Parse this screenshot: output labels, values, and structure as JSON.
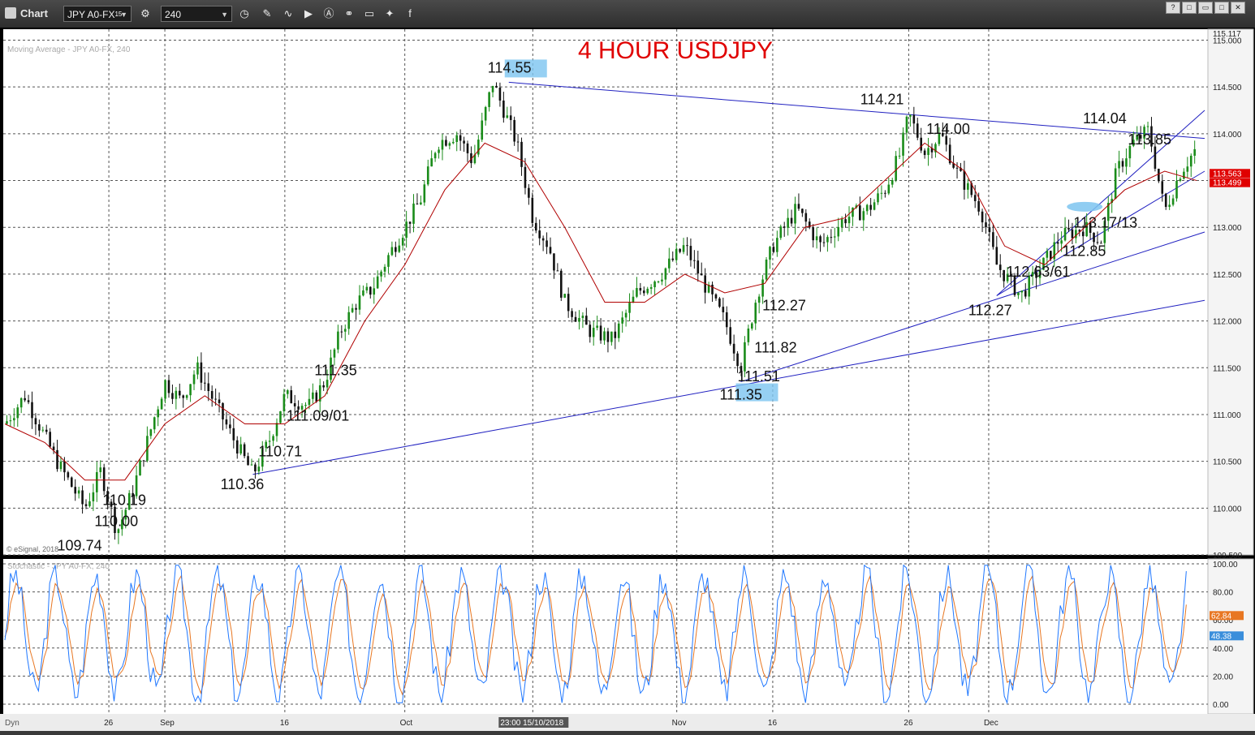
{
  "toolbar": {
    "title": "Chart",
    "symbol": "JPY A0-FX",
    "symbol_sup": "15",
    "interval": "240",
    "icons": [
      "gear-icon",
      "clock-icon",
      "pencil-icon",
      "wave-icon",
      "play-icon",
      "a-icon",
      "link-icon",
      "comment-icon",
      "twitter-icon",
      "facebook-icon"
    ]
  },
  "window_buttons": [
    "?",
    "□",
    "□",
    "▭",
    "✕"
  ],
  "chart_data": {
    "type": "line",
    "title": "4 HOUR USDJPY",
    "subtitle": "Moving Average - JPY A0-FX, 240",
    "watermark": "© eSignal, 2018",
    "price_panel": {
      "ylim": [
        109.5,
        115.117
      ],
      "yticks": [
        "115.000",
        "114.500",
        "114.000",
        "113.500",
        "113.000",
        "112.500",
        "112.000",
        "111.500",
        "111.000",
        "110.500",
        "110.000",
        "109.500"
      ],
      "top_label": "115.117",
      "last_price_tags": [
        "113.563",
        "113.499"
      ],
      "series": [
        {
          "x": [
            0,
            5,
            13,
            20,
            24,
            28,
            32,
            40,
            44,
            48,
            57,
            62,
            66,
            70,
            76,
            80,
            84,
            88,
            92,
            96,
            100,
            104,
            108,
            113,
            117,
            122,
            128,
            132
          ],
          "y": [
            110.9,
            111.2,
            110.5,
            110.0,
            110.4,
            109.74,
            110.19,
            111.35,
            111.15,
            111.5,
            110.75,
            110.36,
            110.71,
            111.2,
            111.09,
            111.35,
            111.9,
            112.2,
            112.35,
            112.7,
            113.0,
            113.3,
            113.9,
            114.0,
            113.7,
            114.55,
            113.9,
            113.1
          ]
        },
        {
          "x": [
            132,
            136,
            140,
            146,
            152,
            158,
            164,
            170,
            176,
            180,
            184,
            188,
            192,
            198,
            204,
            210,
            216,
            220,
            224,
            226,
            230,
            234,
            238,
            244,
            248,
            254,
            260,
            264,
            270,
            274,
            278,
            282,
            286,
            290,
            294,
            298
          ],
          "y": [
            113.1,
            112.8,
            112.2,
            111.9,
            111.8,
            112.3,
            112.5,
            112.8,
            112.3,
            112.0,
            111.51,
            112.27,
            112.8,
            113.2,
            112.8,
            113.1,
            113.2,
            113.4,
            113.8,
            114.21,
            113.8,
            114.0,
            113.6,
            113.2,
            112.6,
            112.27,
            112.63,
            112.9,
            113.0,
            112.85,
            113.6,
            113.9,
            114.04,
            113.17,
            113.6,
            113.85
          ]
        }
      ],
      "ma_series": {
        "x": [
          0,
          10,
          20,
          30,
          40,
          50,
          60,
          70,
          80,
          90,
          100,
          110,
          120,
          130,
          140,
          150,
          160,
          170,
          180,
          190,
          200,
          210,
          220,
          230,
          240,
          250,
          260,
          270,
          280,
          290,
          298
        ],
        "y": [
          110.9,
          110.7,
          110.3,
          110.3,
          110.9,
          111.2,
          110.9,
          110.9,
          111.2,
          112.0,
          112.6,
          113.4,
          113.9,
          113.7,
          113.0,
          112.2,
          112.2,
          112.5,
          112.3,
          112.4,
          113.0,
          113.1,
          113.5,
          113.9,
          113.6,
          112.8,
          112.6,
          113.0,
          113.4,
          113.6,
          113.5
        ]
      },
      "trendlines": [
        {
          "from": [
            62,
            110.36
          ],
          "to": [
            300,
            112.22
          ]
        },
        {
          "from": [
            184,
            111.35
          ],
          "to": [
            300,
            112.95
          ]
        },
        {
          "from": [
            248,
            112.27
          ],
          "to": [
            300,
            113.6
          ],
          "to_alt": [
            300,
            114.25
          ]
        },
        {
          "from": [
            126,
            114.55
          ],
          "to": [
            300,
            113.95
          ]
        }
      ],
      "annotations": [
        {
          "text": "109.74",
          "x": 20,
          "y": 109.74
        },
        {
          "text": "110.00",
          "x": 22,
          "y": 110.0
        },
        {
          "text": "110.19",
          "x": 24,
          "y": 110.19
        },
        {
          "text": "110.36",
          "x": 60,
          "y": 110.36
        },
        {
          "text": "110.71",
          "x": 63,
          "y": 110.71
        },
        {
          "text": "111.09/01",
          "x": 70,
          "y": 111.09
        },
        {
          "text": "111.35",
          "x": 77,
          "y": 111.35
        },
        {
          "text": "114.55",
          "x": 126,
          "y": 114.55
        },
        {
          "text": "111.51",
          "x": 184,
          "y": 111.51
        },
        {
          "text": "111.82",
          "x": 187,
          "y": 111.82
        },
        {
          "text": "112.27",
          "x": 189,
          "y": 112.27
        },
        {
          "text": "111.35",
          "x": 184,
          "y": 111.35
        },
        {
          "text": "114.21",
          "x": 222,
          "y": 114.21
        },
        {
          "text": "114.00",
          "x": 230,
          "y": 114.0
        },
        {
          "text": "112.27",
          "x": 247,
          "y": 112.27
        },
        {
          "text": "112.63/61",
          "x": 250,
          "y": 112.63
        },
        {
          "text": "112.85",
          "x": 264,
          "y": 112.85
        },
        {
          "text": "113.17/13",
          "x": 268,
          "y": 113.17
        },
        {
          "text": "114.04",
          "x": 272,
          "y": 114.04
        },
        {
          "text": "113.85",
          "x": 282,
          "y": 113.85
        }
      ]
    },
    "stochastic_panel": {
      "title": "Stochastic - JPY A0-FX, 240",
      "ylim": [
        0,
        100
      ],
      "yticks": [
        "100.00",
        "80.00",
        "60.00",
        "40.00",
        "20.00",
        "0.00"
      ],
      "value_tags": [
        "62.84",
        "48.38"
      ],
      "k_color": "#1f77ff",
      "d_color": "#e87722"
    },
    "x_labels": [
      "26",
      "Sep",
      "16",
      "Oct",
      "23:00 15/10/2018",
      "Nov",
      "16",
      "26",
      "Dec"
    ],
    "footer_left": "Dyn",
    "colors": {
      "background": "#ffffff",
      "candle_up": "#1a8c1a",
      "candle_down": "#111111",
      "ma": "#b00000",
      "trendline": "#2020c0",
      "title": "#e00000",
      "highlight": "#7cc4f0"
    }
  }
}
